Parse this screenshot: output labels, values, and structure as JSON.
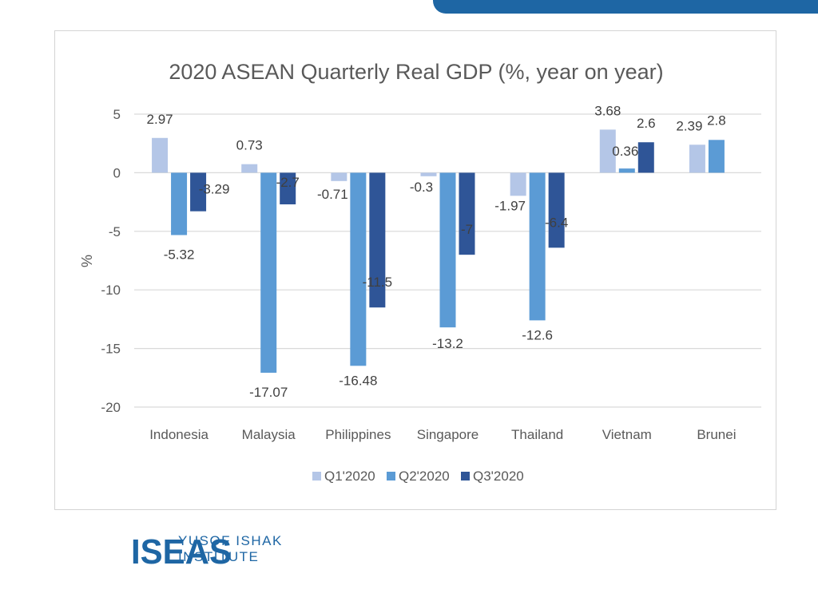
{
  "colors": {
    "q1": "#b4c6e7",
    "q2": "#5b9bd5",
    "q3": "#2f5597",
    "brand": "#1e66a4",
    "grid": "#d9d9d9",
    "text": "#595959"
  },
  "logo": {
    "mark": "ISEAS",
    "line1": "YUSOF ISHAK",
    "line2": "INSTITUTE"
  },
  "chart_data": {
    "type": "bar",
    "title": "2020 ASEAN Quarterly Real GDP (%, year on year)",
    "xlabel": "",
    "ylabel": "%",
    "ylim": [
      -20,
      5
    ],
    "yticks": [
      5,
      0,
      -5,
      -10,
      -15,
      -20
    ],
    "grid": true,
    "legend_position": "bottom",
    "categories": [
      "Indonesia",
      "Malaysia",
      "Philippines",
      "Singapore",
      "Thailand",
      "Vietnam",
      "Brunei"
    ],
    "series": [
      {
        "name": "Q1'2020",
        "values": [
          2.97,
          0.73,
          -0.71,
          -0.3,
          -1.97,
          3.68,
          2.39
        ]
      },
      {
        "name": "Q2'2020",
        "values": [
          -5.32,
          -17.07,
          -16.48,
          -13.2,
          -12.6,
          0.36,
          2.8
        ]
      },
      {
        "name": "Q3'2020",
        "values": [
          -3.29,
          -2.7,
          -11.5,
          -7,
          -6.4,
          2.6,
          null
        ]
      }
    ]
  }
}
